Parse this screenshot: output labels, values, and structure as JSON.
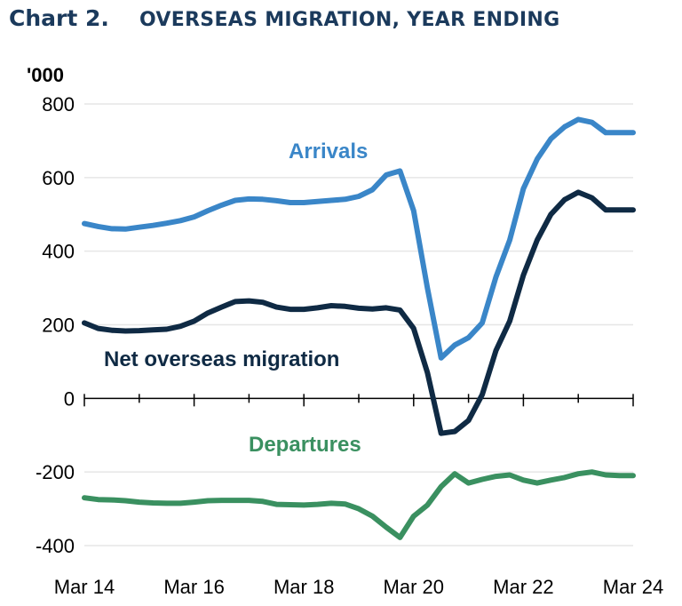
{
  "header": {
    "chart_number": "Chart 2.",
    "title": "OVERSEAS MIGRATION, YEAR ENDING"
  },
  "colors": {
    "arrivals": "#3a86c8",
    "net": "#0f2a44",
    "departures": "#3a9060",
    "title": "#1b3a5c",
    "grid": "#e6e6e6",
    "axis": "#000000"
  },
  "chart_data": {
    "type": "line",
    "title": "OVERSEAS MIGRATION, YEAR ENDING",
    "ylabel": "'000",
    "xlabel": "",
    "ylim": [
      -400,
      800
    ],
    "yticks": [
      800,
      600,
      400,
      200,
      0,
      -200,
      -400
    ],
    "ytick_labels": [
      "800",
      "600",
      "400",
      "200",
      "0",
      "-200",
      "-400"
    ],
    "xticks": [
      "Mar 14",
      "Mar 16",
      "Mar 18",
      "Mar 20",
      "Mar 22",
      "Mar 24"
    ],
    "grid": true,
    "x": [
      "Mar 14",
      "Jun 14",
      "Sep 14",
      "Dec 14",
      "Mar 15",
      "Jun 15",
      "Sep 15",
      "Dec 15",
      "Mar 16",
      "Jun 16",
      "Sep 16",
      "Dec 16",
      "Mar 17",
      "Jun 17",
      "Sep 17",
      "Dec 17",
      "Mar 18",
      "Jun 18",
      "Sep 18",
      "Dec 18",
      "Mar 19",
      "Jun 19",
      "Sep 19",
      "Dec 19",
      "Mar 20",
      "Jun 20",
      "Sep 20",
      "Dec 20",
      "Mar 21",
      "Jun 21",
      "Sep 21",
      "Dec 21",
      "Mar 22",
      "Jun 22",
      "Sep 22",
      "Dec 22",
      "Mar 23",
      "Jun 23",
      "Sep 23",
      "Dec 23",
      "Mar 24"
    ],
    "series": [
      {
        "name": "Arrivals",
        "values": [
          475,
          467,
          461,
          460,
          465,
          470,
          476,
          483,
          493,
          510,
          525,
          538,
          542,
          541,
          537,
          532,
          532,
          535,
          538,
          541,
          549,
          567,
          607,
          618,
          510,
          300,
          110,
          145,
          165,
          205,
          330,
          430,
          570,
          650,
          705,
          738,
          758,
          750,
          722,
          722,
          722
        ]
      },
      {
        "name": "Net overseas migration",
        "values": [
          205,
          190,
          185,
          183,
          184,
          186,
          188,
          196,
          210,
          232,
          248,
          263,
          265,
          261,
          248,
          242,
          242,
          246,
          252,
          250,
          245,
          243,
          246,
          240,
          190,
          70,
          -95,
          -90,
          -60,
          10,
          130,
          210,
          335,
          430,
          500,
          540,
          560,
          545,
          512,
          512,
          512
        ]
      },
      {
        "name": "Departures",
        "values": [
          -270,
          -275,
          -276,
          -278,
          -282,
          -284,
          -285,
          -285,
          -282,
          -278,
          -277,
          -277,
          -277,
          -280,
          -288,
          -289,
          -290,
          -288,
          -285,
          -287,
          -300,
          -320,
          -350,
          -378,
          -320,
          -290,
          -240,
          -205,
          -230,
          -220,
          -212,
          -208,
          -222,
          -230,
          -222,
          -215,
          -205,
          -200,
          -208,
          -210,
          -210
        ]
      }
    ]
  }
}
